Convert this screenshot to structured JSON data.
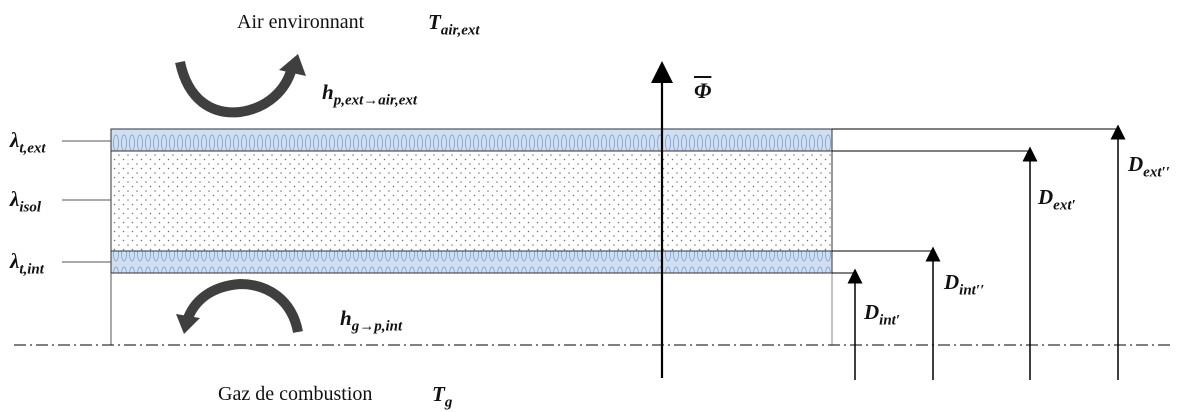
{
  "top_label": {
    "text": "Air environnant",
    "symbol": "T",
    "symbol_sub": "air,ext"
  },
  "bottom_label": {
    "text": "Gaz de combustion",
    "symbol": "T",
    "symbol_sub": "g"
  },
  "flux": {
    "symbol": "Φ",
    "overbar": true
  },
  "h_ext": {
    "symbol": "h",
    "sub": "p,ext→air,ext"
  },
  "h_int": {
    "symbol": "h",
    "sub": "g→p,int"
  },
  "layers": [
    {
      "symbol": "λ",
      "sub": "t,ext"
    },
    {
      "symbol": "λ",
      "sub": "isol"
    },
    {
      "symbol": "λ",
      "sub": "t,int"
    }
  ],
  "diameters": [
    {
      "symbol": "D",
      "sub": "int′"
    },
    {
      "symbol": "D",
      "sub": "int′′"
    },
    {
      "symbol": "D",
      "sub": "ext′"
    },
    {
      "symbol": "D",
      "sub": "ext′′"
    }
  ],
  "colors": {
    "tube_wall": "#c9d9ee",
    "tube_wall_pattern": "#8fb0d6",
    "insulation_dots": "#777777",
    "lines": "#000000"
  }
}
